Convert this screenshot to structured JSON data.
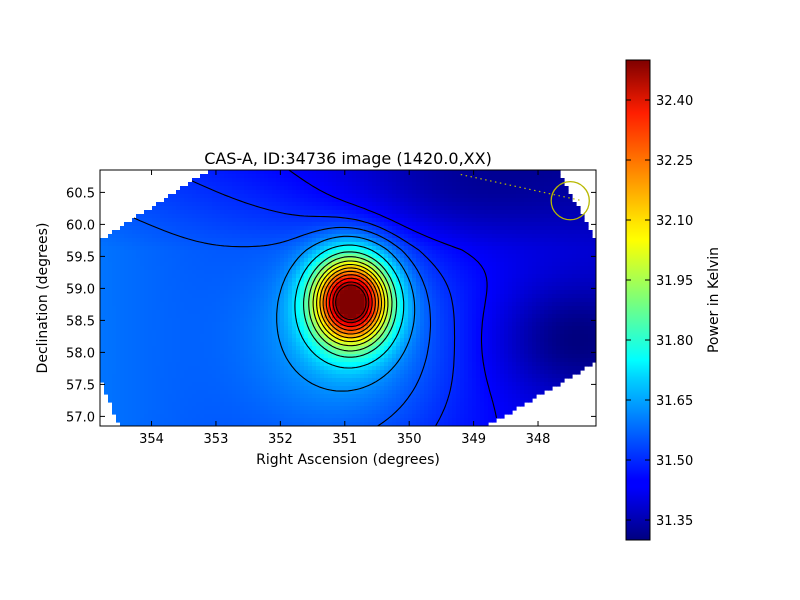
{
  "chart_data": {
    "type": "heatmap",
    "title": "CAS-A, ID:34736 image (1420.0,XX)",
    "xlabel": "Right Ascension (degrees)",
    "ylabel": "Declination (degrees)",
    "xlim": [
      354.8,
      347.1
    ],
    "ylim": [
      56.85,
      60.85
    ],
    "x_ticks": [
      354,
      353,
      352,
      351,
      350,
      349,
      348
    ],
    "x_tick_labels": [
      "354",
      "353",
      "352",
      "351",
      "350",
      "349",
      "348"
    ],
    "y_ticks": [
      57.0,
      57.5,
      58.0,
      58.5,
      59.0,
      59.5,
      60.0,
      60.5
    ],
    "y_tick_labels": [
      "57.0",
      "57.5",
      "58.0",
      "58.5",
      "59.0",
      "59.5",
      "60.0",
      "60.5"
    ],
    "colorbar": {
      "label": "Power in Kelvin",
      "range": [
        31.3,
        32.5
      ],
      "ticks": [
        31.35,
        31.5,
        31.65,
        31.8,
        31.95,
        32.1,
        32.25,
        32.4
      ],
      "tick_labels": [
        "31.35",
        "31.50",
        "31.65",
        "31.80",
        "31.95",
        "32.10",
        "32.25",
        "32.40"
      ],
      "colormap": "jet"
    },
    "peak": {
      "ra": 350.9,
      "dec": 58.8,
      "value": 32.48
    },
    "background_level": 31.5,
    "contour_levels": [
      31.45,
      31.5,
      31.55,
      31.62,
      31.72,
      31.82,
      31.9,
      31.98,
      32.05,
      32.12,
      32.19,
      32.26,
      32.33,
      32.4,
      32.45
    ],
    "beam_marker": {
      "ra": 347.5,
      "dec": 60.37,
      "radius_deg": 0.37,
      "color": "#b8b800"
    },
    "colors": {
      "contour": "#000000",
      "beam": "#b8b800"
    }
  }
}
